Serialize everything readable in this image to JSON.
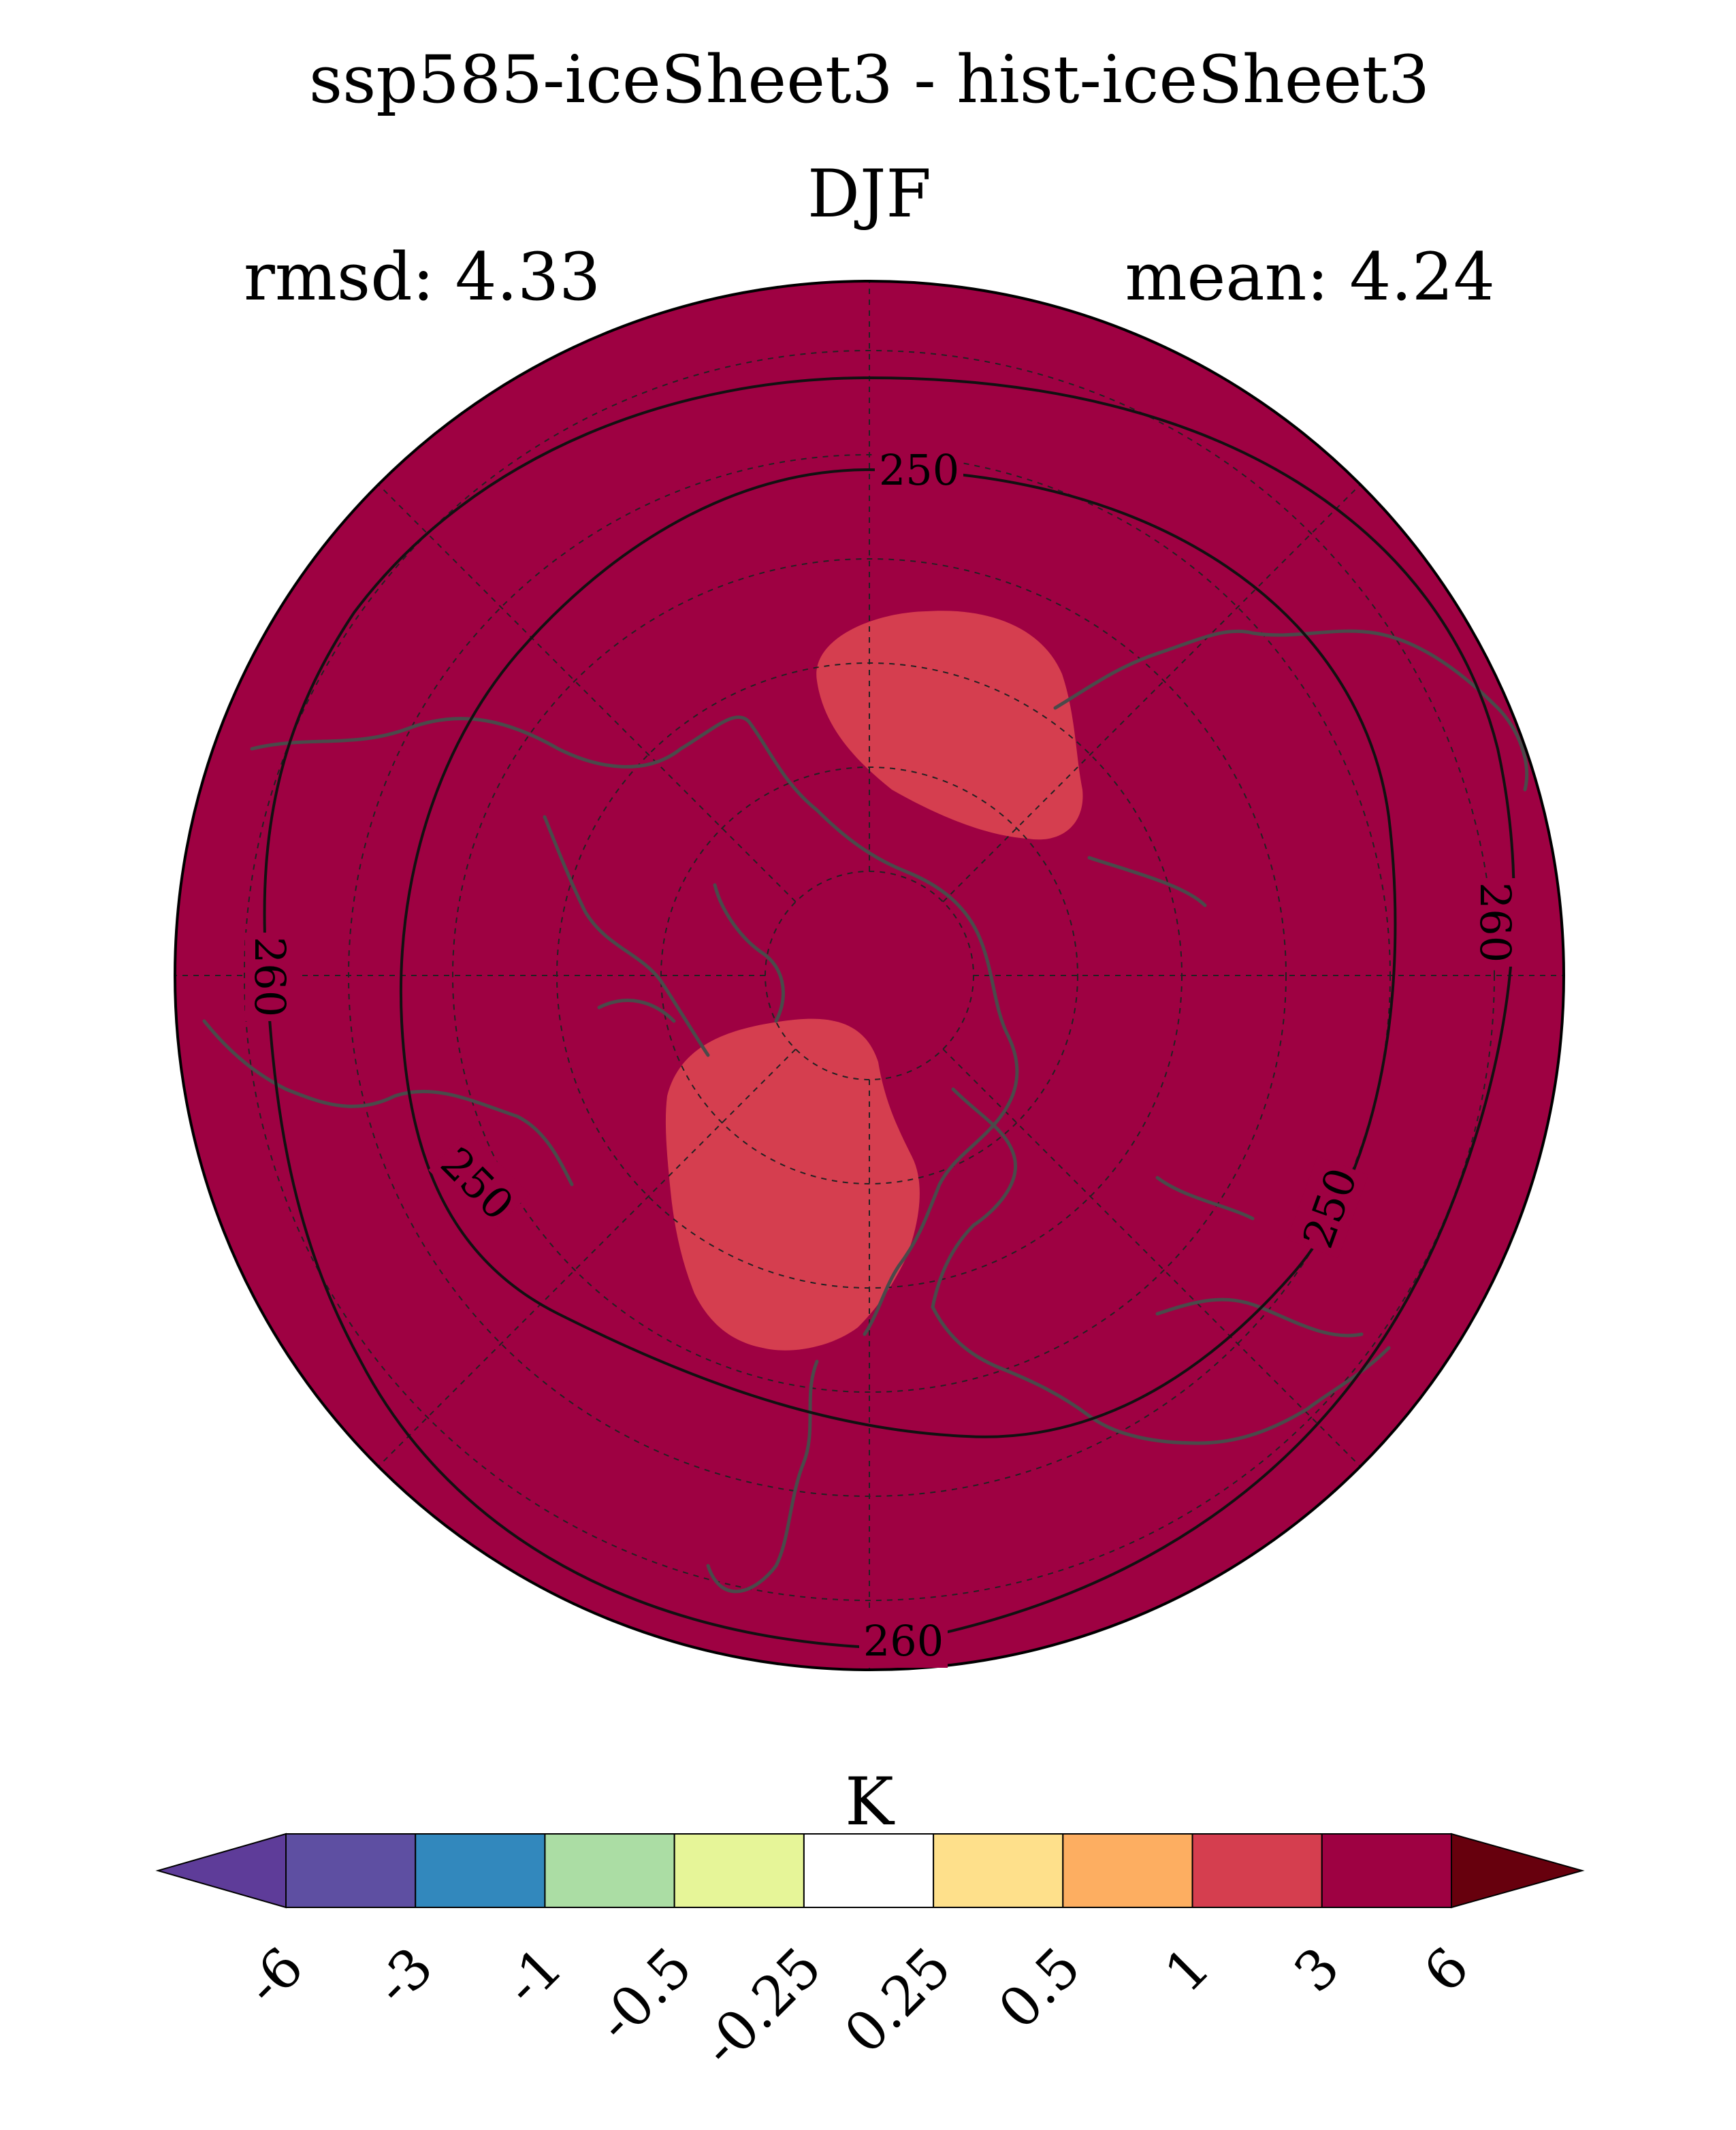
{
  "title": "ssp585-iceSheet3 - hist-iceSheet3",
  "subtitle": "DJF",
  "stats": {
    "rmsd": "rmsd: 4.33",
    "mean": "mean: 4.24"
  },
  "map": {
    "projection": "north-polar-stereographic",
    "background_color": "#9e0142",
    "anomaly_patch_color": "#d53e4f",
    "coastline_color": "#4a4a4a",
    "contours": [
      {
        "level": 250,
        "labels": [
          "250",
          "250",
          "250"
        ]
      },
      {
        "level": 260,
        "labels": [
          "260",
          "260",
          "260"
        ]
      }
    ]
  },
  "colorbar": {
    "unit": "K",
    "tick_labels": [
      "-6",
      "-3",
      "-1",
      "-0.5",
      "-0.25",
      "0.25",
      "0.5",
      "1",
      "3",
      "6"
    ],
    "under_color": "#5e3c99",
    "over_color": "#67000d",
    "colors": [
      "#5e4fa2",
      "#3288bd",
      "#abdda4",
      "#e6f598",
      "#ffffff",
      "#fee08b",
      "#fdae61",
      "#d53e4f",
      "#9e0142"
    ]
  }
}
